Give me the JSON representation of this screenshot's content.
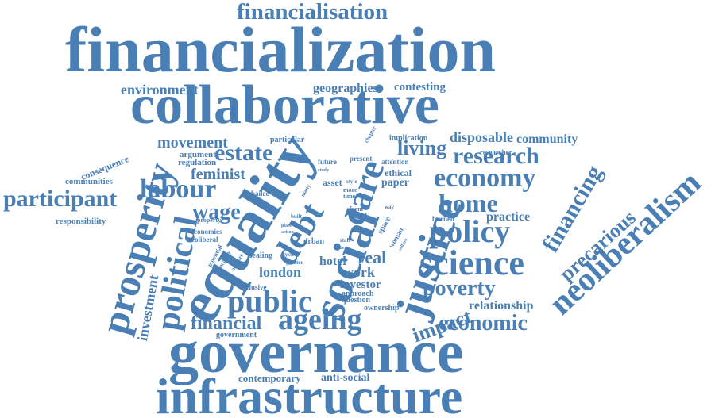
{
  "colors": {
    "word": "#4a7fb5",
    "background": "#ffffff"
  },
  "words": [
    {
      "id": "financialisation",
      "text": "financialisation"
    },
    {
      "id": "financialization",
      "text": "financialization"
    },
    {
      "id": "collaborative",
      "text": "collaborative"
    },
    {
      "id": "environment",
      "text": "environment"
    },
    {
      "id": "geographies",
      "text": "geographies"
    },
    {
      "id": "contesting",
      "text": "contesting"
    },
    {
      "id": "governance",
      "text": "governance"
    },
    {
      "id": "infrastructure",
      "text": "infrastructure"
    },
    {
      "id": "equality",
      "text": "equality"
    },
    {
      "id": "social",
      "text": "social"
    },
    {
      "id": "justice",
      "text": "justice"
    },
    {
      "id": "debt",
      "text": "debt"
    },
    {
      "id": "care",
      "text": "care"
    },
    {
      "id": "prosperity",
      "text": "prosperity"
    },
    {
      "id": "political",
      "text": "political"
    },
    {
      "id": "neoliberalism",
      "text": "neoliberalism"
    },
    {
      "id": "science",
      "text": "science"
    },
    {
      "id": "economy",
      "text": "economy"
    },
    {
      "id": "research",
      "text": "research"
    },
    {
      "id": "policy",
      "text": "policy"
    },
    {
      "id": "home",
      "text": "home"
    },
    {
      "id": "living",
      "text": "living"
    },
    {
      "id": "economic",
      "text": "economic"
    },
    {
      "id": "public",
      "text": "public"
    },
    {
      "id": "ageing",
      "text": "ageing"
    },
    {
      "id": "financial",
      "text": "financial"
    },
    {
      "id": "labour",
      "text": "labour"
    },
    {
      "id": "participant",
      "text": "participant"
    },
    {
      "id": "estate",
      "text": "estate"
    },
    {
      "id": "wage",
      "text": "wage"
    },
    {
      "id": "feminist",
      "text": "feminist"
    },
    {
      "id": "movement",
      "text": "movement"
    },
    {
      "id": "poverty",
      "text": "poverty"
    },
    {
      "id": "impact",
      "text": "impact"
    },
    {
      "id": "financing",
      "text": "financing"
    },
    {
      "id": "precarious",
      "text": "precarious"
    },
    {
      "id": "disposable",
      "text": "disposable"
    },
    {
      "id": "community",
      "text": "community"
    },
    {
      "id": "practice",
      "text": "practice"
    },
    {
      "id": "relationship",
      "text": "relationship"
    },
    {
      "id": "investment",
      "text": "investment"
    },
    {
      "id": "london",
      "text": "london"
    },
    {
      "id": "work",
      "text": "work"
    },
    {
      "id": "real",
      "text": "real"
    },
    {
      "id": "hotel",
      "text": "hotel"
    },
    {
      "id": "investor",
      "text": "investor"
    },
    {
      "id": "contemporary",
      "text": "contemporary"
    },
    {
      "id": "anti-social",
      "text": "anti-social"
    },
    {
      "id": "government",
      "text": "government"
    },
    {
      "id": "consequence",
      "text": "consequence"
    },
    {
      "id": "communities",
      "text": "communities"
    },
    {
      "id": "responsibility",
      "text": "responsibility"
    },
    {
      "id": "argument",
      "text": "argument"
    },
    {
      "id": "regulation",
      "text": "regulation"
    },
    {
      "id": "particular",
      "text": "particular"
    },
    {
      "id": "implication",
      "text": "implication"
    },
    {
      "id": "researcher",
      "text": "researcher"
    },
    {
      "id": "ethical",
      "text": "ethical"
    },
    {
      "id": "paper",
      "text": "paper"
    },
    {
      "id": "asset",
      "text": "asset"
    },
    {
      "id": "future",
      "text": "future"
    },
    {
      "id": "present",
      "text": "present"
    },
    {
      "id": "attention",
      "text": "attention"
    },
    {
      "id": "bailed",
      "text": "bailed"
    },
    {
      "id": "economies",
      "text": "economies"
    },
    {
      "id": "neoliberal",
      "text": "neoliberal"
    },
    {
      "id": "property",
      "text": "property"
    },
    {
      "id": "dealing",
      "text": "dealing"
    },
    {
      "id": "urban",
      "text": "urban"
    },
    {
      "id": "network",
      "text": "network"
    },
    {
      "id": "inclusive",
      "text": "inclusive"
    },
    {
      "id": "approach",
      "text": "approach"
    },
    {
      "id": "question",
      "text": "question"
    },
    {
      "id": "ownership",
      "text": "ownership"
    },
    {
      "id": "space",
      "text": "space"
    },
    {
      "id": "woman",
      "text": "woman"
    },
    {
      "id": "burned",
      "text": "burned"
    },
    {
      "id": "time",
      "text": "time"
    },
    {
      "id": "more",
      "text": "more"
    },
    {
      "id": "system",
      "text": "system"
    },
    {
      "id": "greater",
      "text": "greater"
    },
    {
      "id": "potential",
      "text": "potential"
    },
    {
      "id": "precarity",
      "text": "precarity"
    },
    {
      "id": "form",
      "text": "form"
    },
    {
      "id": "case",
      "text": "case"
    },
    {
      "id": "staff",
      "text": "staff"
    },
    {
      "id": "value",
      "text": "value"
    },
    {
      "id": "welfare",
      "text": "welfare"
    },
    {
      "id": "way",
      "text": "way"
    },
    {
      "id": "style",
      "text": "style"
    },
    {
      "id": "many",
      "text": "many"
    },
    {
      "id": "built",
      "text": "built"
    },
    {
      "id": "place",
      "text": "place"
    },
    {
      "id": "action",
      "text": "action"
    },
    {
      "id": "chapter",
      "text": "chapter"
    },
    {
      "id": "study",
      "text": "study"
    }
  ]
}
